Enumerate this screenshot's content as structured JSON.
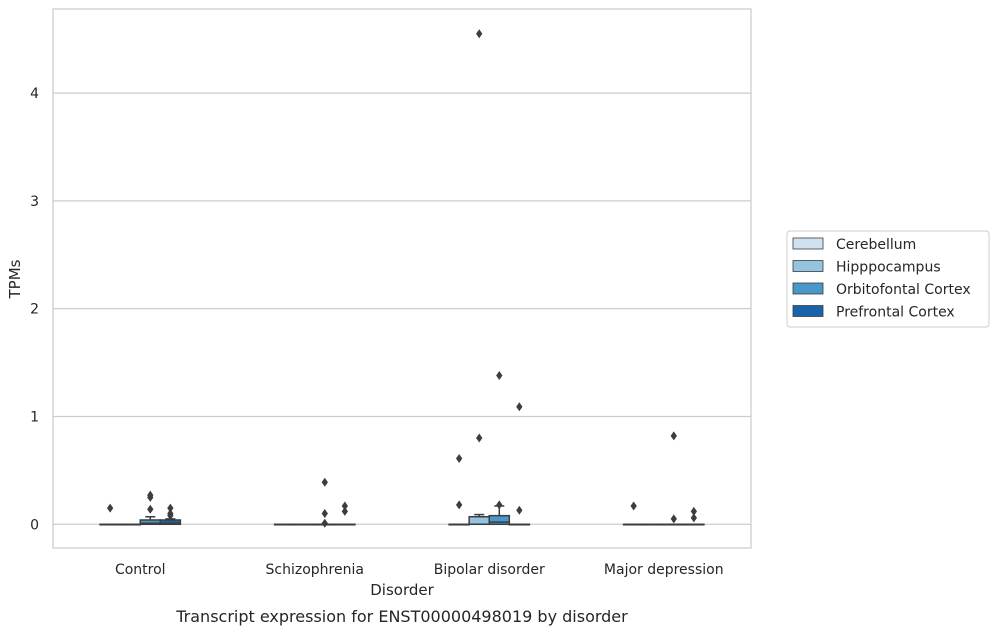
{
  "chart_data": {
    "type": "box",
    "caption": "Transcript expression for ENST00000498019 by disorder",
    "xlabel": "Disorder",
    "ylabel": "TPMs",
    "ylim": [
      -0.22,
      4.78
    ],
    "yticks": [
      0,
      1,
      2,
      3,
      4
    ],
    "grid": "horizontal",
    "legend_position": "right",
    "categories": [
      "Control",
      "Schizophrenia",
      "Bipolar disorder",
      "Major depression"
    ],
    "series": [
      {
        "name": "Cerebellum",
        "color": "#d0e1f2"
      },
      {
        "name": "Hipppocampus",
        "color": "#94c4df"
      },
      {
        "name": "Orbitofontal Cortex",
        "color": "#4a98c9"
      },
      {
        "name": "Prefrontal Cortex",
        "color": "#1764ab"
      }
    ],
    "boxes": [
      [
        {
          "q1": 0,
          "median": 0,
          "q3": 0,
          "whisker_low": 0,
          "whisker_high": 0,
          "outliers": [
            0.15
          ]
        },
        {
          "q1": 0,
          "median": 0,
          "q3": 0,
          "whisker_low": 0,
          "whisker_high": 0,
          "outliers": []
        },
        {
          "q1": 0,
          "median": 0.01,
          "q3": 0.04,
          "whisker_low": 0,
          "whisker_high": 0.07,
          "outliers": [
            0.14,
            0.25,
            0.27
          ]
        },
        {
          "q1": 0,
          "median": 0.01,
          "q3": 0.04,
          "whisker_low": 0,
          "whisker_high": 0.05,
          "outliers": [
            0.08,
            0.1,
            0.15
          ]
        }
      ],
      [
        {
          "q1": 0,
          "median": 0,
          "q3": 0,
          "whisker_low": 0,
          "whisker_high": 0,
          "outliers": []
        },
        {
          "q1": 0,
          "median": 0,
          "q3": 0,
          "whisker_low": 0,
          "whisker_high": 0,
          "outliers": []
        },
        {
          "q1": 0,
          "median": 0,
          "q3": 0,
          "whisker_low": 0,
          "whisker_high": 0,
          "outliers": [
            0.01,
            0.1,
            0.39
          ]
        },
        {
          "q1": 0,
          "median": 0,
          "q3": 0,
          "whisker_low": 0,
          "whisker_high": 0,
          "outliers": [
            0.12,
            0.17
          ]
        }
      ],
      [
        {
          "q1": 0,
          "median": 0,
          "q3": 0,
          "whisker_low": 0,
          "whisker_high": 0,
          "outliers": [
            0.18,
            0.61
          ]
        },
        {
          "q1": 0,
          "median": 0,
          "q3": 0.07,
          "whisker_low": 0,
          "whisker_high": 0.09,
          "outliers": [
            0.8,
            4.55
          ]
        },
        {
          "q1": 0,
          "median": 0.02,
          "q3": 0.08,
          "whisker_low": 0,
          "whisker_high": 0.17,
          "outliers": [
            0.18,
            1.38
          ]
        },
        {
          "q1": 0,
          "median": 0,
          "q3": 0,
          "whisker_low": 0,
          "whisker_high": 0,
          "outliers": [
            0.13,
            1.09
          ]
        }
      ],
      [
        {
          "q1": 0,
          "median": 0,
          "q3": 0,
          "whisker_low": 0,
          "whisker_high": 0,
          "outliers": [
            0.17
          ]
        },
        {
          "q1": 0,
          "median": 0,
          "q3": 0,
          "whisker_low": 0,
          "whisker_high": 0,
          "outliers": []
        },
        {
          "q1": 0,
          "median": 0,
          "q3": 0,
          "whisker_low": 0,
          "whisker_high": 0,
          "outliers": [
            0.05,
            0.82
          ]
        },
        {
          "q1": 0,
          "median": 0,
          "q3": 0,
          "whisker_low": 0,
          "whisker_high": 0,
          "outliers": [
            0.06,
            0.12
          ]
        }
      ]
    ]
  }
}
